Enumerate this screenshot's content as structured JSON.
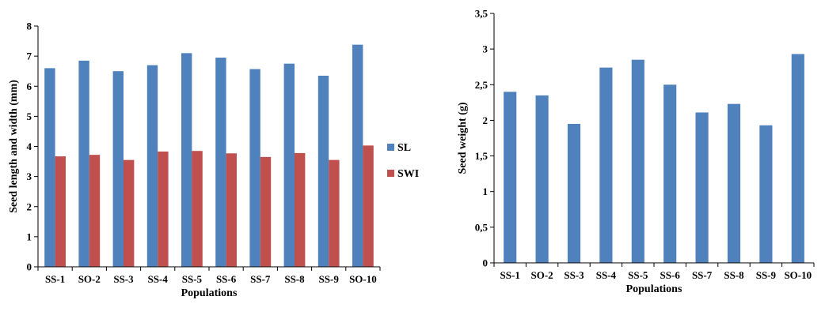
{
  "chart_data": [
    {
      "type": "bar",
      "categories": [
        "SS-1",
        "SO-2",
        "SS-3",
        "SS-4",
        "SS-5",
        "SS-6",
        "SS-7",
        "SS-8",
        "SS-9",
        "SO-10"
      ],
      "series": [
        {
          "name": "SL",
          "color": "#4f81bd",
          "values": [
            6.6,
            6.85,
            6.5,
            6.7,
            7.1,
            6.95,
            6.57,
            6.75,
            6.35,
            7.38
          ]
        },
        {
          "name": "SWI",
          "color": "#c0504d",
          "values": [
            3.67,
            3.72,
            3.55,
            3.83,
            3.85,
            3.77,
            3.65,
            3.78,
            3.55,
            4.03
          ]
        }
      ],
      "xlabel": "Populations",
      "ylabel": "Seed length and width (mm)",
      "ylim": [
        0,
        8
      ],
      "yticks": [
        "0",
        "1",
        "2",
        "3",
        "4",
        "5",
        "6",
        "7",
        "8"
      ],
      "grid": false,
      "legend": "right"
    },
    {
      "type": "bar",
      "categories": [
        "SS-1",
        "SO-2",
        "SS-3",
        "SS-4",
        "SS-5",
        "SS-6",
        "SS-7",
        "SS-8",
        "SS-9",
        "SO-10"
      ],
      "series": [
        {
          "color": "#4f81bd",
          "values": [
            2.4,
            2.35,
            1.95,
            2.74,
            2.85,
            2.5,
            2.11,
            2.23,
            1.93,
            2.93
          ]
        }
      ],
      "xlabel": "Populations",
      "ylabel": "Seed weight (g)",
      "ylim": [
        0,
        3.5
      ],
      "yticks": [
        "0",
        "0,5",
        "1",
        "1,5",
        "2",
        "2,5",
        "3",
        "3,5"
      ],
      "grid": false,
      "legend": "none"
    }
  ]
}
